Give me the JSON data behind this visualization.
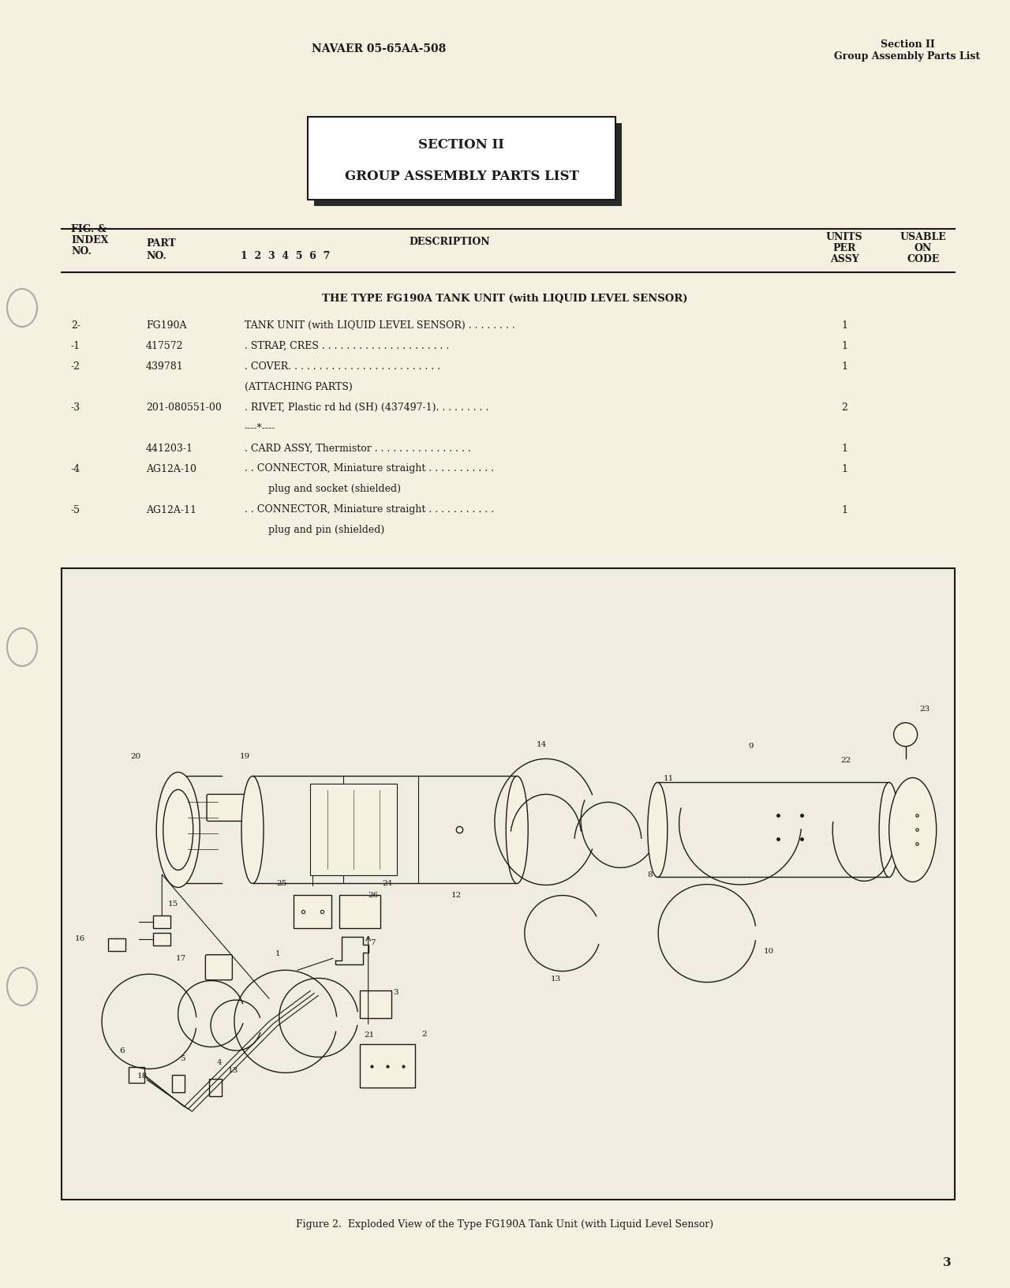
{
  "page_bg": "#f5f0e0",
  "text_color": "#1a1a1a",
  "header_left": "NAVAER 05-65AA-508",
  "header_right_line1": "Section II",
  "header_right_line2": "Group Assembly Parts List",
  "section_box_line1": "SECTION II",
  "section_box_line2": "GROUP ASSEMBLY PARTS LIST",
  "type_header": "THE TYPE FG190A TANK UNIT (with LIQUID LEVEL SENSOR)",
  "figure_caption": "Figure 2.  Exploded View of the Type FG190A Tank Unit (with Liquid Level Sensor)",
  "page_number": "3"
}
